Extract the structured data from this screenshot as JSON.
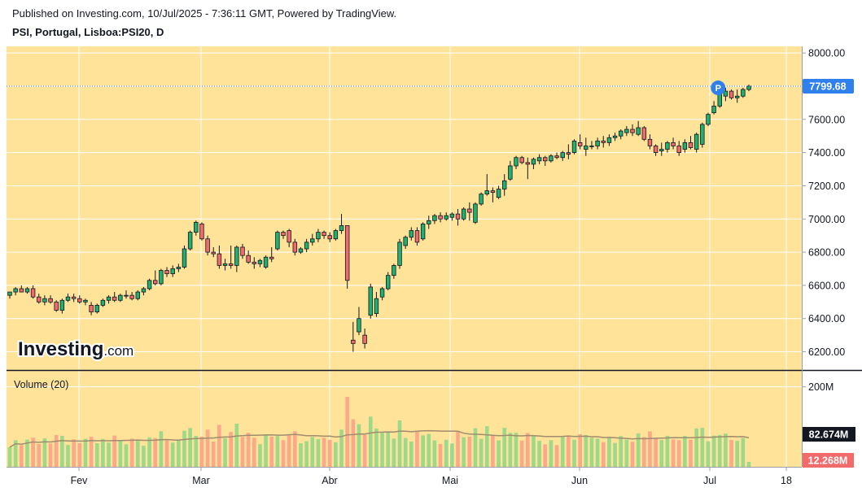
{
  "header": {
    "published": "Published on Investing.com, 10/Jul/2025 - 7:36:11 GMT, Powered by TradingView.",
    "symbol": "PSI, Portugal, Lisboa:PSI20, D"
  },
  "colors": {
    "background": "#FFE399",
    "up": "#20B070",
    "down": "#F26B6B",
    "up_volume": "#9ED98A",
    "down_volume": "#FBA98A",
    "ma_line": "#A08C6E",
    "price_label": "#2F80ED"
  },
  "logo": {
    "brand": "Investing",
    "suffix": ".com"
  },
  "price_pane": {
    "last_price_label": "7799.68",
    "marker_label": "P"
  },
  "volume_pane": {
    "title": "Volume (20)",
    "ma_label": "82.674M",
    "last_volume_label": "12.268M"
  },
  "chart_data": {
    "type": "candlestick",
    "symbol": "PSI, Portugal, Lisboa:PSI20, D",
    "y_axis": {
      "ticks": [
        "8000.00",
        "7800.00",
        "7600.00",
        "7400.00",
        "7200.00",
        "7000.00",
        "6800.00",
        "6600.00",
        "6400.00",
        "6200.00"
      ],
      "range": [
        6090,
        8040
      ]
    },
    "x_axis": {
      "ticks": [
        "Fev",
        "Mar",
        "Abr",
        "Mai",
        "Jun",
        "Jul",
        "18"
      ]
    },
    "volume_axis": {
      "ticks": [
        "200M"
      ],
      "range": [
        0,
        240
      ]
    },
    "candles": [
      [
        6540,
        6560,
        6520,
        6560
      ],
      [
        6560,
        6590,
        6540,
        6580
      ],
      [
        6580,
        6600,
        6560,
        6560
      ],
      [
        6560,
        6590,
        6550,
        6580
      ],
      [
        6580,
        6600,
        6520,
        6530
      ],
      [
        6530,
        6550,
        6490,
        6500
      ],
      [
        6500,
        6540,
        6480,
        6520
      ],
      [
        6520,
        6540,
        6490,
        6500
      ],
      [
        6500,
        6510,
        6440,
        6450
      ],
      [
        6450,
        6520,
        6430,
        6510
      ],
      [
        6510,
        6550,
        6500,
        6530
      ],
      [
        6530,
        6550,
        6500,
        6520
      ],
      [
        6520,
        6540,
        6490,
        6500
      ],
      [
        6500,
        6520,
        6480,
        6510
      ],
      [
        6480,
        6500,
        6420,
        6440
      ],
      [
        6440,
        6490,
        6430,
        6480
      ],
      [
        6480,
        6520,
        6470,
        6510
      ],
      [
        6510,
        6540,
        6490,
        6530
      ],
      [
        6530,
        6560,
        6500,
        6510
      ],
      [
        6510,
        6550,
        6500,
        6540
      ],
      [
        6540,
        6570,
        6520,
        6540
      ],
      [
        6540,
        6560,
        6510,
        6520
      ],
      [
        6520,
        6570,
        6510,
        6560
      ],
      [
        6560,
        6590,
        6540,
        6580
      ],
      [
        6580,
        6640,
        6570,
        6630
      ],
      [
        6630,
        6690,
        6600,
        6610
      ],
      [
        6610,
        6700,
        6600,
        6690
      ],
      [
        6690,
        6710,
        6650,
        6670
      ],
      [
        6670,
        6720,
        6650,
        6700
      ],
      [
        6700,
        6730,
        6680,
        6710
      ],
      [
        6710,
        6840,
        6700,
        6820
      ],
      [
        6820,
        6930,
        6810,
        6920
      ],
      [
        6920,
        6990,
        6900,
        6980
      ],
      [
        6970,
        6980,
        6870,
        6880
      ],
      [
        6880,
        6900,
        6780,
        6800
      ],
      [
        6800,
        6830,
        6770,
        6790
      ],
      [
        6790,
        6840,
        6700,
        6720
      ],
      [
        6720,
        6760,
        6690,
        6730
      ],
      [
        6730,
        6840,
        6700,
        6720
      ],
      [
        6720,
        6840,
        6680,
        6830
      ],
      [
        6830,
        6850,
        6760,
        6780
      ],
      [
        6780,
        6810,
        6730,
        6740
      ],
      [
        6740,
        6770,
        6700,
        6730
      ],
      [
        6730,
        6760,
        6710,
        6750
      ],
      [
        6710,
        6780,
        6700,
        6770
      ],
      [
        6770,
        6830,
        6740,
        6760
      ],
      [
        6820,
        6930,
        6810,
        6920
      ],
      [
        6920,
        6930,
        6880,
        6900
      ],
      [
        6930,
        6940,
        6830,
        6860
      ],
      [
        6860,
        6880,
        6780,
        6800
      ],
      [
        6800,
        6830,
        6790,
        6820
      ],
      [
        6820,
        6880,
        6800,
        6860
      ],
      [
        6860,
        6910,
        6840,
        6880
      ],
      [
        6880,
        6940,
        6860,
        6920
      ],
      [
        6920,
        6930,
        6880,
        6900
      ],
      [
        6900,
        6920,
        6860,
        6880
      ],
      [
        6880,
        6940,
        6870,
        6930
      ],
      [
        6930,
        7030,
        6910,
        6960
      ],
      [
        6960,
        6960,
        6580,
        6630
      ],
      [
        6270,
        6380,
        6200,
        6250
      ],
      [
        6320,
        6470,
        6300,
        6400
      ],
      [
        6300,
        6340,
        6220,
        6250
      ],
      [
        6420,
        6610,
        6400,
        6590
      ],
      [
        6430,
        6560,
        6410,
        6520
      ],
      [
        6530,
        6590,
        6510,
        6580
      ],
      [
        6580,
        6680,
        6570,
        6660
      ],
      [
        6660,
        6730,
        6640,
        6720
      ],
      [
        6720,
        6880,
        6700,
        6860
      ],
      [
        6840,
        6900,
        6820,
        6890
      ],
      [
        6890,
        6950,
        6870,
        6930
      ],
      [
        6930,
        6950,
        6840,
        6860
      ],
      [
        6880,
        6980,
        6870,
        6970
      ],
      [
        6970,
        7020,
        6940,
        6990
      ],
      [
        6990,
        7030,
        6970,
        7020
      ],
      [
        7020,
        7040,
        6980,
        7000
      ],
      [
        7000,
        7040,
        6990,
        7020
      ],
      [
        7010,
        7040,
        6990,
        7030
      ],
      [
        7030,
        7060,
        6960,
        7000
      ],
      [
        7000,
        7070,
        6990,
        7060
      ],
      [
        7060,
        7100,
        6990,
        7040
      ],
      [
        6980,
        7100,
        6970,
        7090
      ],
      [
        7090,
        7160,
        7080,
        7150
      ],
      [
        7150,
        7270,
        7140,
        7170
      ],
      [
        7170,
        7190,
        7100,
        7160
      ],
      [
        7130,
        7200,
        7120,
        7180
      ],
      [
        7180,
        7270,
        7140,
        7230
      ],
      [
        7240,
        7350,
        7230,
        7320
      ],
      [
        7320,
        7380,
        7300,
        7370
      ],
      [
        7370,
        7380,
        7330,
        7340
      ],
      [
        7340,
        7370,
        7240,
        7330
      ],
      [
        7330,
        7370,
        7300,
        7360
      ],
      [
        7350,
        7390,
        7330,
        7370
      ],
      [
        7370,
        7380,
        7320,
        7350
      ],
      [
        7350,
        7390,
        7340,
        7380
      ],
      [
        7380,
        7400,
        7360,
        7370
      ],
      [
        7370,
        7410,
        7350,
        7400
      ],
      [
        7400,
        7450,
        7360,
        7390
      ],
      [
        7400,
        7480,
        7390,
        7470
      ],
      [
        7460,
        7510,
        7420,
        7440
      ],
      [
        7420,
        7490,
        7380,
        7440
      ],
      [
        7440,
        7470,
        7420,
        7440
      ],
      [
        7440,
        7490,
        7420,
        7470
      ],
      [
        7470,
        7500,
        7430,
        7460
      ],
      [
        7460,
        7510,
        7440,
        7490
      ],
      [
        7490,
        7520,
        7470,
        7500
      ],
      [
        7500,
        7540,
        7480,
        7530
      ],
      [
        7520,
        7560,
        7500,
        7540
      ],
      [
        7540,
        7570,
        7500,
        7520
      ],
      [
        7510,
        7590,
        7500,
        7550
      ],
      [
        7550,
        7560,
        7470,
        7480
      ],
      [
        7480,
        7510,
        7420,
        7440
      ],
      [
        7440,
        7450,
        7380,
        7400
      ],
      [
        7410,
        7460,
        7380,
        7420
      ],
      [
        7420,
        7470,
        7400,
        7460
      ],
      [
        7460,
        7490,
        7420,
        7440
      ],
      [
        7440,
        7470,
        7380,
        7400
      ],
      [
        7420,
        7480,
        7400,
        7460
      ],
      [
        7460,
        7500,
        7420,
        7430
      ],
      [
        7420,
        7520,
        7400,
        7510
      ],
      [
        7450,
        7580,
        7430,
        7570
      ],
      [
        7570,
        7640,
        7560,
        7630
      ],
      [
        7640,
        7710,
        7630,
        7680
      ],
      [
        7680,
        7780,
        7670,
        7760
      ],
      [
        7740,
        7790,
        7710,
        7770
      ],
      [
        7770,
        7780,
        7720,
        7730
      ],
      [
        7730,
        7780,
        7700,
        7740
      ],
      [
        7740,
        7790,
        7730,
        7780
      ],
      [
        7780,
        7810,
        7770,
        7800
      ]
    ],
    "last_price": 7799.68,
    "volume_ma_20": 82.674,
    "last_volume": 12.268
  }
}
